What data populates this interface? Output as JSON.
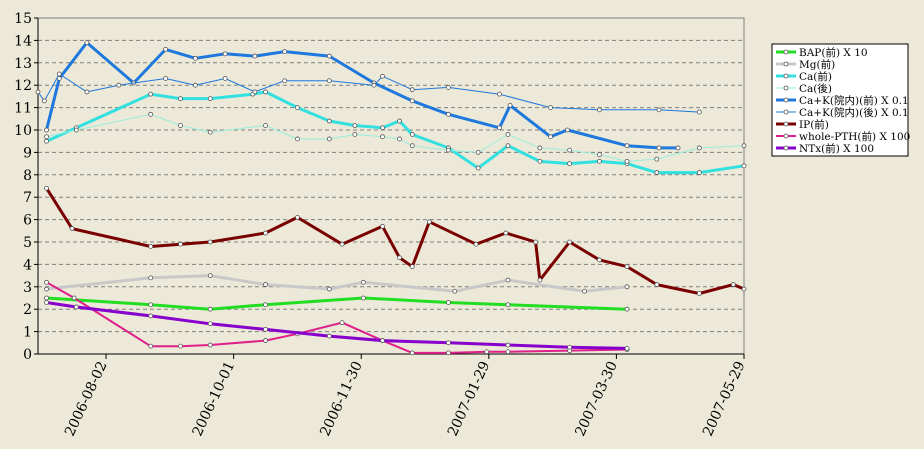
{
  "chart_data": {
    "type": "line",
    "title": "",
    "xlabel": "",
    "ylabel": "",
    "ylim": [
      0,
      15
    ],
    "yticks": [
      0,
      1,
      2,
      3,
      4,
      5,
      6,
      7,
      8,
      9,
      10,
      11,
      12,
      13,
      14,
      15
    ],
    "xlim": [
      "2006-07-01",
      "2007-05-29"
    ],
    "xticks": [
      "2006-08-02",
      "2006-10-01",
      "2006-11-30",
      "2007-01-29",
      "2007-03-30",
      "2007-05-29"
    ],
    "grid": "horizontal dashed",
    "legend_position": "right",
    "series": [
      {
        "name": "BAP(前) X 10",
        "color": "#22dd22",
        "width": 3,
        "points": [
          [
            "2006-07-05",
            2.5
          ],
          [
            "2006-08-23",
            2.2
          ],
          [
            "2006-09-20",
            2.0
          ],
          [
            "2006-10-16",
            2.2
          ],
          [
            "2006-12-01",
            2.5
          ],
          [
            "2007-01-10",
            2.3
          ],
          [
            "2007-02-07",
            2.2
          ],
          [
            "2007-04-04",
            2.0
          ]
        ]
      },
      {
        "name": "Mg(前)",
        "color": "#c8c8c8",
        "width": 3,
        "points": [
          [
            "2006-07-05",
            2.9
          ],
          [
            "2006-08-23",
            3.4
          ],
          [
            "2006-09-20",
            3.5
          ],
          [
            "2006-10-16",
            3.1
          ],
          [
            "2006-11-15",
            2.9
          ],
          [
            "2006-12-01",
            3.2
          ],
          [
            "2007-01-13",
            2.8
          ],
          [
            "2007-02-07",
            3.3
          ],
          [
            "2007-03-15",
            2.8
          ],
          [
            "2007-04-04",
            3.0
          ]
        ]
      },
      {
        "name": "Ca(前)",
        "color": "#33e0e0",
        "width": 3,
        "points": [
          [
            "2006-07-05",
            9.5
          ],
          [
            "2006-07-19",
            10.1
          ],
          [
            "2006-08-23",
            11.6
          ],
          [
            "2006-09-06",
            11.4
          ],
          [
            "2006-09-20",
            11.4
          ],
          [
            "2006-10-10",
            11.6
          ],
          [
            "2006-10-16",
            11.7
          ],
          [
            "2006-10-31",
            11.0
          ],
          [
            "2006-11-15",
            10.4
          ],
          [
            "2006-11-27",
            10.2
          ],
          [
            "2006-12-10",
            10.1
          ],
          [
            "2006-12-18",
            10.4
          ],
          [
            "2006-12-24",
            9.8
          ],
          [
            "2007-01-10",
            9.2
          ],
          [
            "2007-01-24",
            8.3
          ],
          [
            "2007-02-07",
            9.3
          ],
          [
            "2007-02-22",
            8.6
          ],
          [
            "2007-03-08",
            8.5
          ],
          [
            "2007-03-22",
            8.6
          ],
          [
            "2007-04-04",
            8.5
          ],
          [
            "2007-04-18",
            8.1
          ],
          [
            "2007-05-08",
            8.1
          ],
          [
            "2007-05-29",
            8.4
          ]
        ]
      },
      {
        "name": "Ca(後)",
        "color": "#99eedd",
        "width": 1,
        "marker_fill": "#ffffff",
        "points": [
          [
            "2006-07-05",
            9.7
          ],
          [
            "2006-07-19",
            10.0
          ],
          [
            "2006-08-23",
            10.7
          ],
          [
            "2006-09-06",
            10.2
          ],
          [
            "2006-09-20",
            9.9
          ],
          [
            "2006-10-16",
            10.2
          ],
          [
            "2006-10-31",
            9.6
          ],
          [
            "2006-11-15",
            9.6
          ],
          [
            "2006-11-27",
            9.8
          ],
          [
            "2006-12-10",
            9.7
          ],
          [
            "2006-12-18",
            9.6
          ],
          [
            "2006-12-24",
            9.3
          ],
          [
            "2007-01-10",
            9.1
          ],
          [
            "2007-01-24",
            9.0
          ],
          [
            "2007-02-07",
            9.8
          ],
          [
            "2007-02-22",
            9.2
          ],
          [
            "2007-03-08",
            9.1
          ],
          [
            "2007-03-22",
            8.9
          ],
          [
            "2007-04-04",
            8.6
          ],
          [
            "2007-04-18",
            8.7
          ],
          [
            "2007-05-08",
            9.2
          ],
          [
            "2007-05-29",
            9.3
          ]
        ]
      },
      {
        "name": "Ca+K(院内)(前) X 0.1",
        "color": "#1e78dd",
        "width": 3,
        "points": [
          [
            "2006-07-05",
            10.0
          ],
          [
            "2006-07-11",
            12.3
          ],
          [
            "2006-07-24",
            13.9
          ],
          [
            "2006-08-15",
            12.1
          ],
          [
            "2006-08-30",
            13.6
          ],
          [
            "2006-09-13",
            13.2
          ],
          [
            "2006-09-27",
            13.4
          ],
          [
            "2006-10-11",
            13.3
          ],
          [
            "2006-10-25",
            13.5
          ],
          [
            "2006-11-15",
            13.3
          ],
          [
            "2006-12-06",
            12.1
          ],
          [
            "2006-12-24",
            11.3
          ],
          [
            "2007-01-10",
            10.7
          ],
          [
            "2007-02-03",
            10.1
          ],
          [
            "2007-02-08",
            11.1
          ],
          [
            "2007-02-27",
            9.7
          ],
          [
            "2007-03-07",
            10.0
          ],
          [
            "2007-04-04",
            9.3
          ],
          [
            "2007-04-19",
            9.2
          ],
          [
            "2007-04-28",
            9.2
          ]
        ]
      },
      {
        "name": "Ca+K(院内)(後) X 0.1",
        "color": "#1e78dd",
        "width": 1,
        "marker_fill": "#ffffff",
        "points": [
          [
            "2006-07-01",
            11.7
          ],
          [
            "2006-07-04",
            11.3
          ],
          [
            "2006-07-11",
            12.5
          ],
          [
            "2006-07-24",
            11.7
          ],
          [
            "2006-08-08",
            12.0
          ],
          [
            "2006-08-30",
            12.3
          ],
          [
            "2006-09-13",
            12.0
          ],
          [
            "2006-09-27",
            12.3
          ],
          [
            "2006-10-11",
            11.7
          ],
          [
            "2006-10-25",
            12.2
          ],
          [
            "2006-11-15",
            12.2
          ],
          [
            "2006-12-06",
            12.0
          ],
          [
            "2006-12-10",
            12.4
          ],
          [
            "2006-12-24",
            11.8
          ],
          [
            "2007-01-10",
            11.9
          ],
          [
            "2007-02-03",
            11.6
          ],
          [
            "2007-02-27",
            11.0
          ],
          [
            "2007-03-22",
            10.9
          ],
          [
            "2007-04-19",
            10.9
          ],
          [
            "2007-05-08",
            10.8
          ]
        ]
      },
      {
        "name": "IP(前)",
        "color": "#7a0000",
        "width": 3,
        "points": [
          [
            "2006-07-05",
            7.4
          ],
          [
            "2006-07-17",
            5.6
          ],
          [
            "2006-08-23",
            4.8
          ],
          [
            "2006-09-06",
            4.9
          ],
          [
            "2006-09-20",
            5.0
          ],
          [
            "2006-10-16",
            5.4
          ],
          [
            "2006-10-31",
            6.1
          ],
          [
            "2006-11-21",
            4.9
          ],
          [
            "2006-12-10",
            5.7
          ],
          [
            "2006-12-18",
            4.3
          ],
          [
            "2006-12-24",
            3.9
          ],
          [
            "2007-01-01",
            5.9
          ],
          [
            "2007-01-23",
            4.9
          ],
          [
            "2007-02-06",
            5.4
          ],
          [
            "2007-02-20",
            5.0
          ],
          [
            "2007-02-22",
            3.3
          ],
          [
            "2007-03-08",
            5.0
          ],
          [
            "2007-03-22",
            4.2
          ],
          [
            "2007-04-04",
            3.9
          ],
          [
            "2007-04-18",
            3.1
          ],
          [
            "2007-05-08",
            2.7
          ],
          [
            "2007-05-24",
            3.1
          ],
          [
            "2007-05-29",
            2.9
          ]
        ]
      },
      {
        "name": "whole-PTH(前) X 100",
        "color": "#e0208a",
        "width": 2,
        "points": [
          [
            "2006-07-05",
            3.2
          ],
          [
            "2006-07-18",
            2.5
          ],
          [
            "2006-08-23",
            0.35
          ],
          [
            "2006-09-06",
            0.35
          ],
          [
            "2006-09-20",
            0.4
          ],
          [
            "2006-10-16",
            0.6
          ],
          [
            "2006-10-31",
            0.9
          ],
          [
            "2006-11-21",
            1.4
          ],
          [
            "2006-12-10",
            0.6
          ],
          [
            "2006-12-24",
            0.05
          ],
          [
            "2007-01-10",
            0.05
          ],
          [
            "2007-01-28",
            0.1
          ],
          [
            "2007-02-07",
            0.1
          ],
          [
            "2007-03-08",
            0.15
          ],
          [
            "2007-04-04",
            0.2
          ]
        ]
      },
      {
        "name": "NTx(前) X 100",
        "color": "#8800cc",
        "width": 3,
        "points": [
          [
            "2006-07-05",
            2.3
          ],
          [
            "2006-07-19",
            2.1
          ],
          [
            "2006-08-23",
            1.7
          ],
          [
            "2006-09-20",
            1.35
          ],
          [
            "2006-10-16",
            1.1
          ],
          [
            "2006-11-15",
            0.8
          ],
          [
            "2006-12-10",
            0.6
          ],
          [
            "2007-01-10",
            0.5
          ],
          [
            "2007-02-07",
            0.4
          ],
          [
            "2007-03-08",
            0.3
          ],
          [
            "2007-04-04",
            0.25
          ]
        ]
      }
    ]
  }
}
